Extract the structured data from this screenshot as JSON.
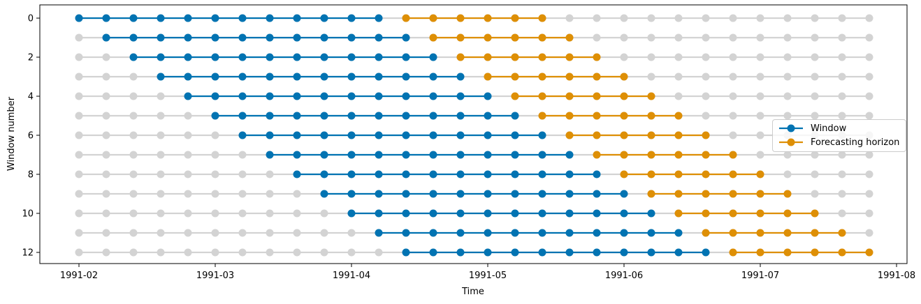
{
  "chart_data": {
    "type": "line",
    "subtype": "sliding-window-cross-validation-plot",
    "title": "",
    "xlabel": "Time",
    "ylabel": "Window number",
    "x_tick_labels": [
      "1991-02",
      "1991-03",
      "1991-04",
      "1991-05",
      "1991-06",
      "1991-07",
      "1991-08"
    ],
    "y_tick_labels": [
      "0",
      "2",
      "4",
      "6",
      "8",
      "10",
      "12"
    ],
    "n_timepoints": 30,
    "n_windows": 13,
    "window_length": 12,
    "fh_length": 6,
    "step_length": 1,
    "windows": [
      {
        "window": 0,
        "train": [
          0,
          11
        ],
        "fh": [
          12,
          17
        ]
      },
      {
        "window": 1,
        "train": [
          1,
          12
        ],
        "fh": [
          13,
          18
        ]
      },
      {
        "window": 2,
        "train": [
          2,
          13
        ],
        "fh": [
          14,
          19
        ]
      },
      {
        "window": 3,
        "train": [
          3,
          14
        ],
        "fh": [
          15,
          20
        ]
      },
      {
        "window": 4,
        "train": [
          4,
          15
        ],
        "fh": [
          16,
          21
        ]
      },
      {
        "window": 5,
        "train": [
          5,
          16
        ],
        "fh": [
          17,
          22
        ]
      },
      {
        "window": 6,
        "train": [
          6,
          17
        ],
        "fh": [
          18,
          23
        ]
      },
      {
        "window": 7,
        "train": [
          7,
          18
        ],
        "fh": [
          19,
          24
        ]
      },
      {
        "window": 8,
        "train": [
          8,
          19
        ],
        "fh": [
          20,
          25
        ]
      },
      {
        "window": 9,
        "train": [
          9,
          20
        ],
        "fh": [
          21,
          26
        ]
      },
      {
        "window": 10,
        "train": [
          10,
          21
        ],
        "fh": [
          22,
          27
        ]
      },
      {
        "window": 11,
        "train": [
          11,
          22
        ],
        "fh": [
          23,
          28
        ]
      },
      {
        "window": 12,
        "train": [
          12,
          23
        ],
        "fh": [
          24,
          29
        ]
      }
    ],
    "legend": [
      {
        "label": "Window",
        "color": "#0173B2"
      },
      {
        "label": "Forecasting horizon",
        "color": "#DE8F05"
      }
    ],
    "legend_position": "right",
    "grid": false,
    "colors": {
      "window": "#0173B2",
      "forecasting_horizon": "#DE8F05",
      "unused": "#D3D3D3",
      "axis": "#000000",
      "background": "#ffffff"
    }
  }
}
